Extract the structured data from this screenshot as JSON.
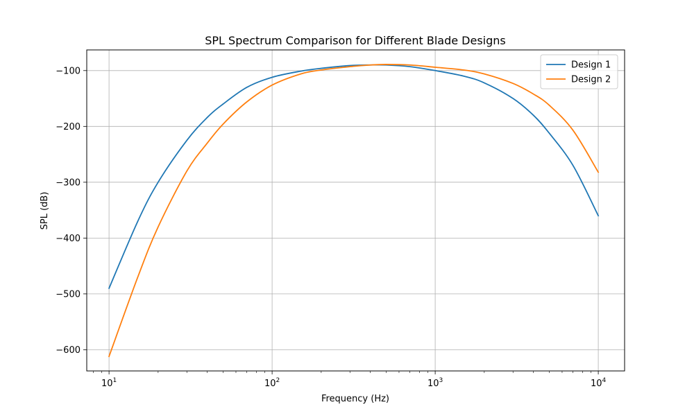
{
  "chart_data": {
    "type": "line",
    "title": "SPL Spectrum Comparison for Different Blade Designs",
    "xlabel": "Frequency (Hz)",
    "ylabel": "SPL (dB)",
    "xscale": "log",
    "xlim": [
      7.3,
      14500
    ],
    "ylim": [
      -638,
      -63
    ],
    "x_ticks": [
      {
        "value": 10,
        "base": "10",
        "exp": "1"
      },
      {
        "value": 100,
        "base": "10",
        "exp": "2"
      },
      {
        "value": 1000,
        "base": "10",
        "exp": "3"
      },
      {
        "value": 10000,
        "base": "10",
        "exp": "4"
      }
    ],
    "y_ticks": [
      {
        "value": -100,
        "label": "−100"
      },
      {
        "value": -200,
        "label": "−200"
      },
      {
        "value": -300,
        "label": "−300"
      },
      {
        "value": -400,
        "label": "−400"
      },
      {
        "value": -500,
        "label": "−500"
      },
      {
        "value": -600,
        "label": "−600"
      }
    ],
    "grid": true,
    "legend_position": "top-right",
    "series": [
      {
        "name": "Design 1",
        "color": "#1f77b4",
        "x": [
          10,
          15,
          20,
          30,
          40,
          50,
          70,
          100,
          150,
          200,
          300,
          400,
          500,
          700,
          1000,
          1500,
          2000,
          3000,
          4000,
          5000,
          7000,
          10000
        ],
        "y": [
          -490,
          -370,
          -300,
          -225,
          -184,
          -160,
          -130,
          -112,
          -101,
          -96,
          -91,
          -90,
          -90,
          -93,
          -100,
          -110,
          -122,
          -150,
          -180,
          -212,
          -270,
          -360
        ]
      },
      {
        "name": "Design 2",
        "color": "#ff7f0e",
        "x": [
          10,
          15,
          20,
          30,
          40,
          50,
          70,
          100,
          150,
          200,
          300,
          400,
          500,
          700,
          1000,
          1500,
          2000,
          3000,
          4000,
          5000,
          7000,
          10000
        ],
        "y": [
          -612,
          -470,
          -380,
          -280,
          -230,
          -196,
          -156,
          -126,
          -106,
          -99,
          -93,
          -90,
          -89,
          -90,
          -94,
          -99,
          -106,
          -123,
          -142,
          -162,
          -207,
          -282
        ]
      }
    ]
  }
}
